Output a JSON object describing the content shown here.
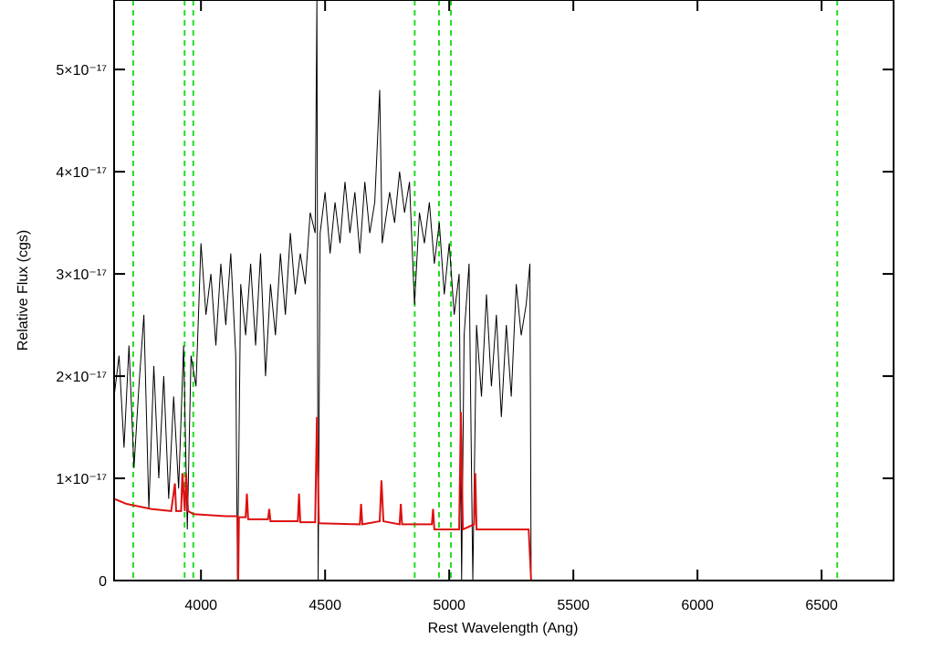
{
  "chart_data": {
    "type": "line",
    "xlabel": "Rest Wavelength (Ang)",
    "ylabel": "Relative Flux (cgs)",
    "xlim": [
      3650,
      6790
    ],
    "ylim": [
      0,
      5.68e-17
    ],
    "xticks": [
      4000,
      4500,
      5000,
      5500,
      6000,
      6500
    ],
    "yticks": [
      0,
      {
        "value": 1e-17,
        "label": "1×10⁻¹⁷"
      },
      {
        "value": 2e-17,
        "label": "2×10⁻¹⁷"
      },
      {
        "value": 3e-17,
        "label": "3×10⁻¹⁷"
      },
      {
        "value": 4e-17,
        "label": "4×10⁻¹⁷"
      },
      {
        "value": 5e-17,
        "label": "5×10⁻¹⁷"
      }
    ],
    "vlines": [
      3727,
      3934,
      3969,
      4861,
      4959,
      5007,
      6563
    ],
    "vline_color": "#22dd22",
    "series": [
      {
        "color": "#000000",
        "x": [
          3650,
          3670,
          3690,
          3710,
          3730,
          3750,
          3770,
          3790,
          3810,
          3830,
          3850,
          3870,
          3890,
          3910,
          3930,
          3945,
          3960,
          3980,
          4000,
          4020,
          4040,
          4060,
          4080,
          4100,
          4120,
          4140,
          4147,
          4160,
          4180,
          4200,
          4220,
          4240,
          4260,
          4280,
          4300,
          4320,
          4340,
          4360,
          4380,
          4400,
          4420,
          4440,
          4460,
          4467,
          4472,
          4480,
          4500,
          4520,
          4540,
          4560,
          4580,
          4600,
          4620,
          4640,
          4660,
          4680,
          4700,
          4720,
          4730,
          4760,
          4780,
          4800,
          4820,
          4840,
          4860,
          4880,
          4900,
          4920,
          4940,
          4960,
          4980,
          5000,
          5020,
          5040,
          5050,
          5060,
          5080,
          5095,
          5110,
          5130,
          5150,
          5170,
          5190,
          5210,
          5230,
          5250,
          5270,
          5290,
          5310,
          5325,
          5330,
          6790
        ],
        "values": [
          1.8e-17,
          2.2e-17,
          1.3e-17,
          2.3e-17,
          1.1e-17,
          1.9e-17,
          2.6e-17,
          7e-18,
          2.1e-17,
          1e-17,
          2e-17,
          8e-18,
          1.8e-17,
          9e-18,
          2.3e-17,
          5e-18,
          2.2e-17,
          1.9e-17,
          3.3e-17,
          2.6e-17,
          3e-17,
          2.3e-17,
          3.1e-17,
          2.5e-17,
          3.2e-17,
          2.2e-17,
          0,
          2.9e-17,
          2.4e-17,
          3.1e-17,
          2.3e-17,
          3.2e-17,
          2e-17,
          2.9e-17,
          2.4e-17,
          3.2e-17,
          2.6e-17,
          3.4e-17,
          2.8e-17,
          3.2e-17,
          2.9e-17,
          3.6e-17,
          3.4e-17,
          5.68e-17,
          0,
          3.4e-17,
          3.8e-17,
          3.2e-17,
          3.7e-17,
          3.3e-17,
          3.9e-17,
          3.4e-17,
          3.8e-17,
          3.2e-17,
          3.9e-17,
          3.4e-17,
          3.7e-17,
          4.8e-17,
          3.3e-17,
          3.8e-17,
          3.5e-17,
          4e-17,
          3.6e-17,
          3.9e-17,
          2.7e-17,
          3.6e-17,
          3.3e-17,
          3.7e-17,
          3.1e-17,
          3.5e-17,
          2.8e-17,
          3.3e-17,
          2.6e-17,
          3e-17,
          0,
          2.4e-17,
          3.1e-17,
          0,
          2.5e-17,
          1.8e-17,
          2.8e-17,
          1.9e-17,
          2.6e-17,
          1.6e-17,
          2.5e-17,
          1.8e-17,
          2.9e-17,
          2.4e-17,
          2.7e-17,
          3.1e-17,
          0,
          0
        ]
      },
      {
        "color": "#dd1111",
        "x": [
          3650,
          3700,
          3800,
          3880,
          3895,
          3900,
          3920,
          3925,
          3935,
          3940,
          3948,
          3970,
          4100,
          4147,
          4150,
          4153,
          4180,
          4185,
          4190,
          4270,
          4275,
          4280,
          4390,
          4395,
          4400,
          4460,
          4467,
          4475,
          4640,
          4645,
          4650,
          4720,
          4727,
          4735,
          4800,
          4805,
          4810,
          4930,
          4935,
          4940,
          5040,
          5047,
          5055,
          5100,
          5105,
          5110,
          5320,
          5330,
          6790
        ],
        "values": [
          8e-18,
          7.5e-18,
          7e-18,
          6.8e-18,
          9.5e-18,
          6.8e-18,
          6.8e-18,
          1.05e-17,
          6.8e-18,
          1.05e-17,
          6.8e-18,
          6.5e-18,
          6.3e-18,
          6.3e-18,
          0,
          6.2e-18,
          6.2e-18,
          8.5e-18,
          6e-18,
          6e-18,
          7e-18,
          5.8e-18,
          5.8e-18,
          8.5e-18,
          5.7e-18,
          5.7e-18,
          1.6e-17,
          5.6e-18,
          5.5e-18,
          7.5e-18,
          5.5e-18,
          5.8e-18,
          9.8e-18,
          5.8e-18,
          5.5e-18,
          7.5e-18,
          5.5e-18,
          5.5e-18,
          7e-18,
          5e-18,
          5e-18,
          1.65e-17,
          5e-18,
          5.5e-18,
          1.05e-17,
          5e-18,
          5e-18,
          0,
          0
        ]
      }
    ]
  }
}
